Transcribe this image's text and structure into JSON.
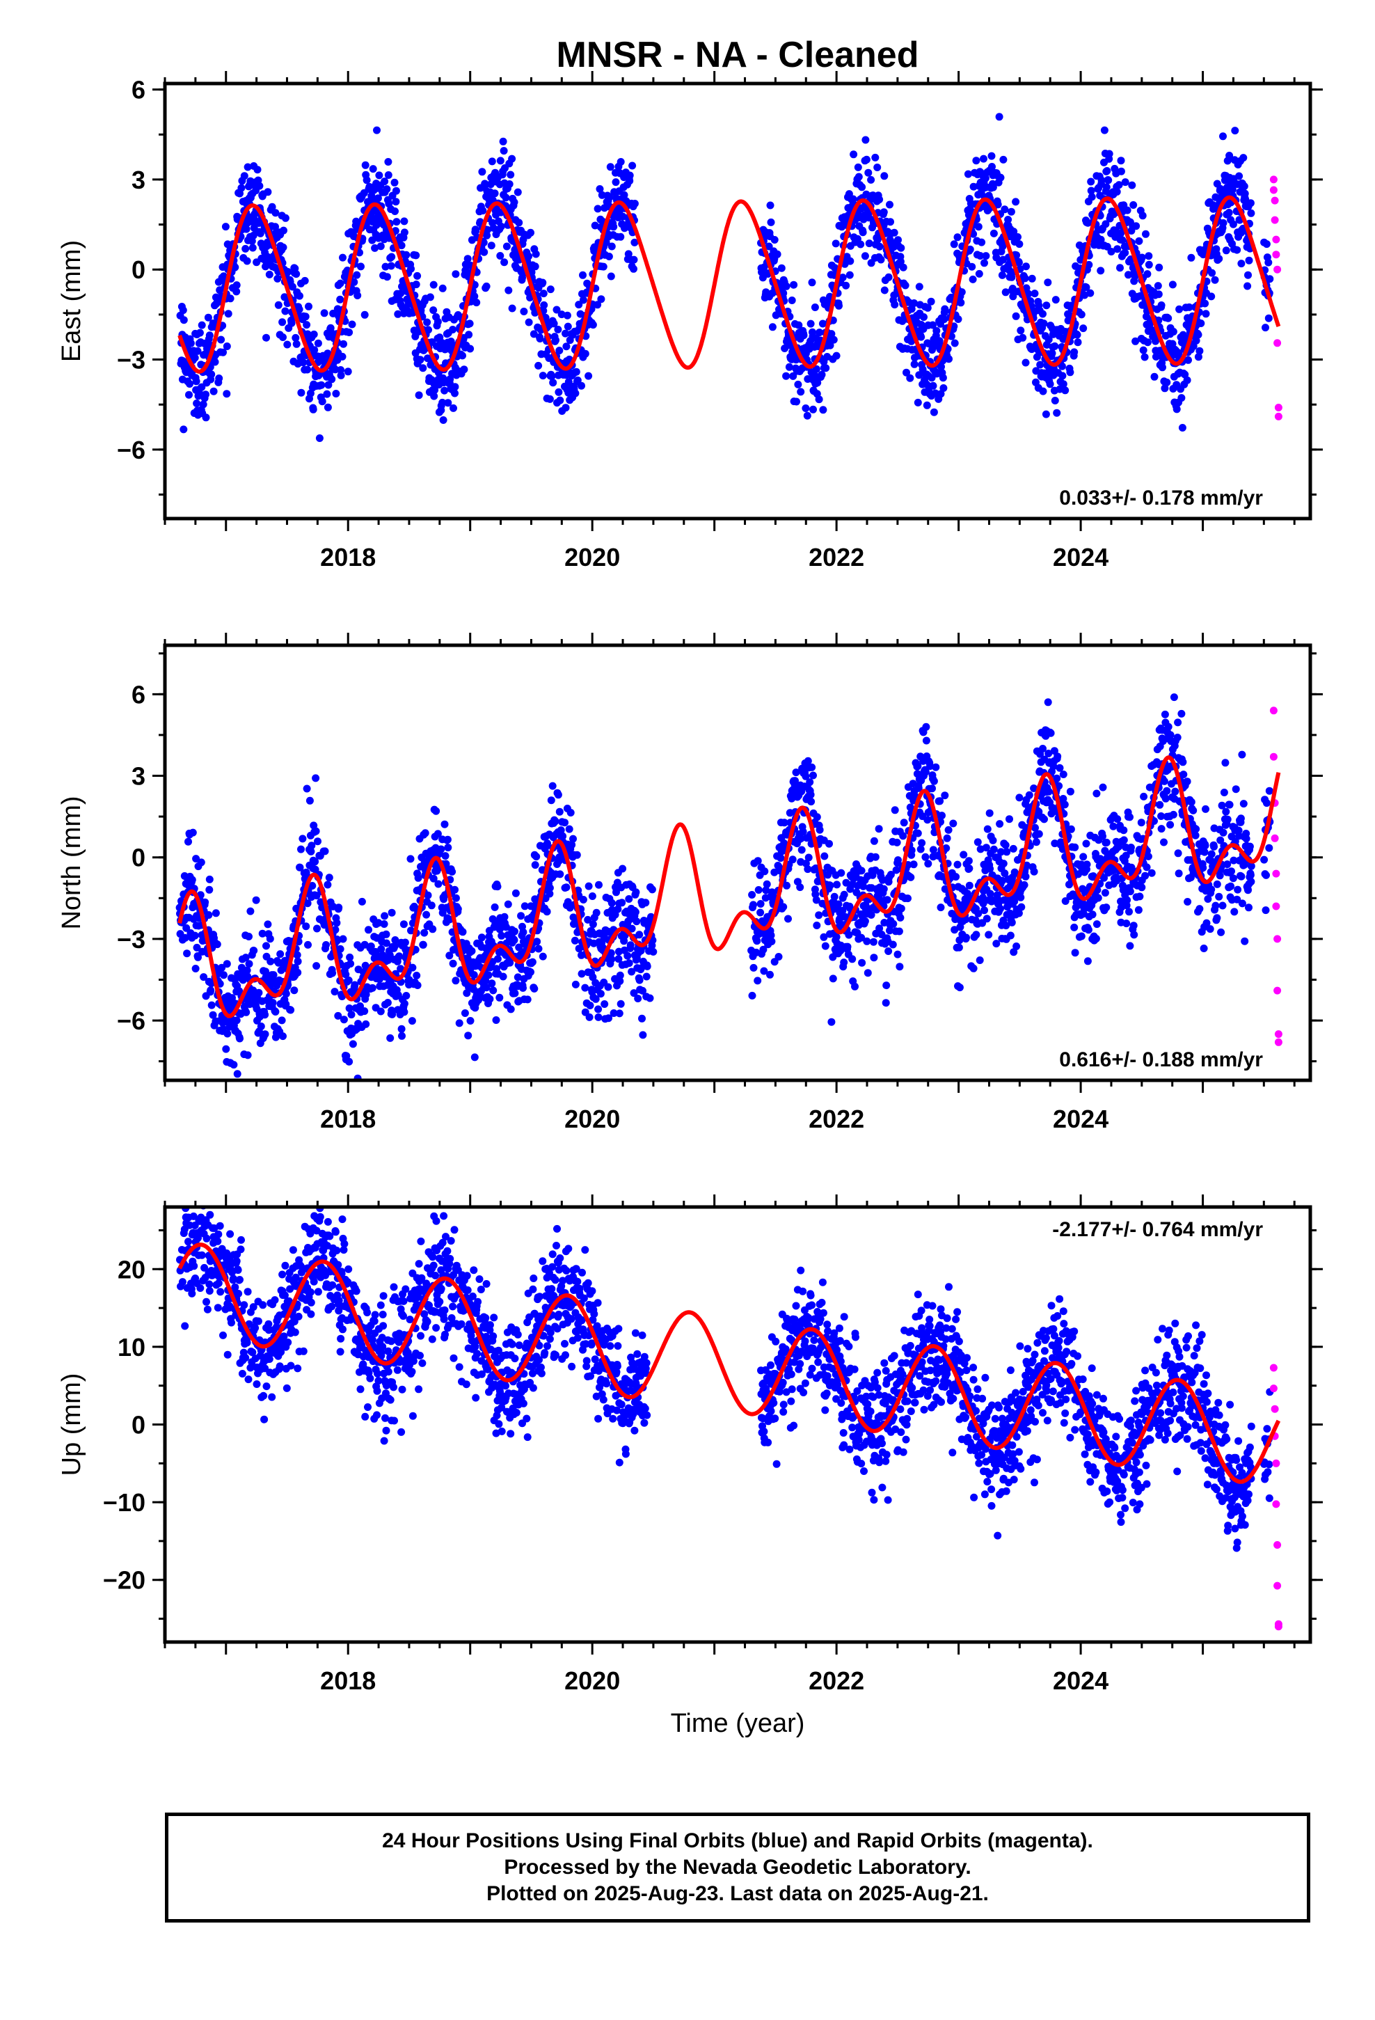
{
  "title": "MNSR  - NA - Cleaned",
  "colors": {
    "final": "#0000ff",
    "rapid": "#ff00ff",
    "model": "#ff0000",
    "frame": "#000000"
  },
  "xlabel": "Time (year)",
  "footer": [
    "24 Hour Positions Using Final Orbits (blue) and Rapid Orbits (magenta).",
    "Processed by the Nevada Geodetic Laboratory.",
    "Plotted on 2025-Aug-23. Last data on 2025-Aug-21."
  ],
  "chart_data": [
    {
      "type": "scatter",
      "ylabel": "East (mm)",
      "rate_label": "0.033+/- 0.178 mm/yr",
      "rate_position": "bottom-right",
      "xlim": [
        2016.5,
        2025.88
      ],
      "ylim": [
        -8.3,
        6.2
      ],
      "xticks": [
        2018,
        2020,
        2022,
        2024
      ],
      "yticks": [
        -6,
        -3,
        0,
        3,
        6
      ],
      "yticklabels": [
        "−6",
        "−3",
        "0",
        "3",
        "6"
      ],
      "gaps": [
        [
          2020.35,
          2021.38
        ],
        [
          2025.4,
          2025.5
        ]
      ],
      "model": {
        "offset": -0.5,
        "trend": 0.033,
        "amp1": 2.7,
        "phase1": 0.0,
        "amp2": 0.3,
        "phase2": 0.5,
        "start": 2016.62,
        "end": 2025.62
      },
      "noise": 0.9,
      "final_range": [
        2016.62,
        2025.55
      ],
      "rapid_x": [
        2025.58,
        2025.59,
        2025.6,
        2025.61,
        2025.62
      ],
      "rapid_y": [
        3.0,
        2.3,
        1.0,
        0.0,
        -4.9
      ]
    },
    {
      "type": "scatter",
      "ylabel": "North (mm)",
      "rate_label": "0.616+/- 0.188 mm/yr",
      "rate_position": "bottom-right",
      "xlim": [
        2016.5,
        2025.88
      ],
      "ylim": [
        -8.2,
        7.8
      ],
      "xticks": [
        2018,
        2020,
        2022,
        2024
      ],
      "yticks": [
        -6,
        -3,
        0,
        3,
        6
      ],
      "yticklabels": [
        "−6",
        "−3",
        "0",
        "3",
        "6"
      ],
      "gaps": [
        [
          2020.5,
          2021.3
        ],
        [
          2025.4,
          2025.5
        ]
      ],
      "model": {
        "offset": -1.6,
        "trend": 0.616,
        "amp1": 1.8,
        "phase1": 0.45,
        "amp2": 1.2,
        "phase2": 0.1,
        "start": 2016.62,
        "end": 2025.62
      },
      "noise": 1.1,
      "final_range": [
        2016.62,
        2025.55
      ],
      "rapid_x": [
        2025.58,
        2025.59,
        2025.6,
        2025.61,
        2025.62
      ],
      "rapid_y": [
        5.4,
        2.0,
        -0.6,
        -3.0,
        -6.8
      ]
    },
    {
      "type": "scatter",
      "ylabel": "Up (mm)",
      "rate_label": "-2.177+/- 0.764 mm/yr",
      "rate_position": "top-right",
      "xlim": [
        2016.5,
        2025.88
      ],
      "ylim": [
        -28,
        28
      ],
      "xticks": [
        2018,
        2020,
        2022,
        2024
      ],
      "yticks": [
        -20,
        -10,
        0,
        10,
        20
      ],
      "yticklabels": [
        "−20",
        "−10",
        "0",
        "10",
        "20"
      ],
      "gaps": [
        [
          2020.45,
          2021.38
        ],
        [
          2025.4,
          2025.5
        ]
      ],
      "model": {
        "offset": 8.0,
        "trend": -2.177,
        "amp1": 6.0,
        "phase1": 0.55,
        "amp2": 0.0,
        "phase2": 0.0,
        "start": 2016.62,
        "end": 2025.62
      },
      "noise": 3.6,
      "final_range": [
        2016.62,
        2025.55
      ],
      "rapid_x": [
        2025.58,
        2025.59,
        2025.6,
        2025.61,
        2025.62
      ],
      "rapid_y": [
        7.3,
        2.0,
        -5.0,
        -15.5,
        -26.0
      ]
    }
  ]
}
